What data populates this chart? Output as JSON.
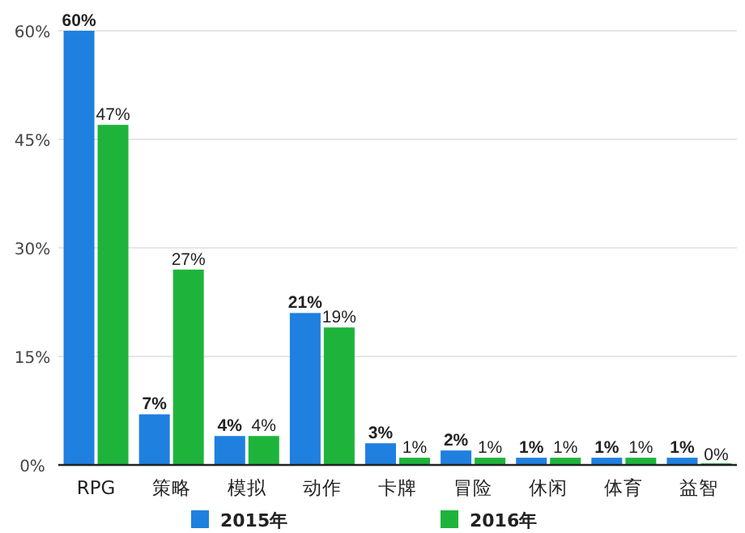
{
  "chart_data": {
    "type": "bar",
    "categories": [
      "RPG",
      "策略",
      "模拟",
      "动作",
      "卡牌",
      "冒险",
      "休闲",
      "体育",
      "益智"
    ],
    "series": [
      {
        "name": "2015年",
        "color": "#1f80e0",
        "values": [
          60,
          7,
          4,
          21,
          3,
          2,
          1,
          1,
          1
        ],
        "value_labels": [
          "60%",
          "7%",
          "4%",
          "21%",
          "3%",
          "2%",
          "1%",
          "1%",
          "1%"
        ]
      },
      {
        "name": "2016年",
        "color": "#1eb43c",
        "values": [
          47,
          27,
          4,
          19,
          1,
          1,
          1,
          1,
          0
        ],
        "value_labels": [
          "47%",
          "27%",
          "4%",
          "19%",
          "1%",
          "1%",
          "1%",
          "1%",
          "0%"
        ]
      }
    ],
    "ylim": [
      0,
      60
    ],
    "yticks": [
      {
        "value": 0,
        "label": "0%"
      },
      {
        "value": 15,
        "label": "15%"
      },
      {
        "value": 30,
        "label": "30%"
      },
      {
        "value": 45,
        "label": "45%"
      },
      {
        "value": 60,
        "label": "60%"
      }
    ],
    "grid": "y",
    "legend": "bottom"
  }
}
